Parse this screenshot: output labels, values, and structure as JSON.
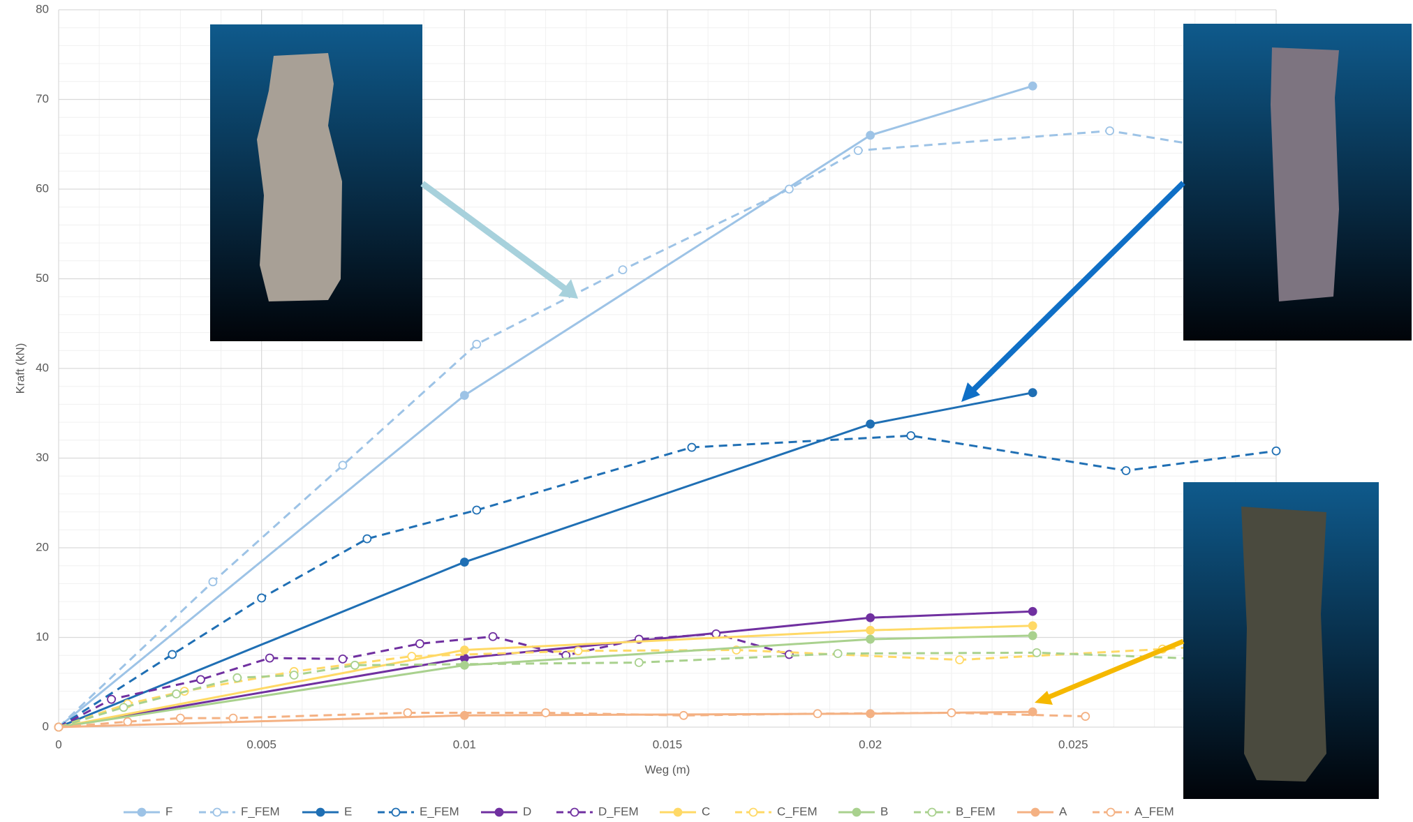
{
  "chart_data": {
    "type": "line",
    "x_label": "Weg (m)",
    "y_label": "Kraft (kN)",
    "xlim": [
      0,
      0.03
    ],
    "xticks": [
      0,
      0.005,
      0.01,
      0.015,
      0.02,
      0.025
    ],
    "ylim": [
      0,
      80
    ],
    "yticks": [
      0,
      10,
      20,
      30,
      40,
      50,
      60,
      70,
      80
    ],
    "grid": true,
    "legend": "bottom",
    "series": [
      {
        "name": "F",
        "color": "#9dc3e6",
        "dashed": false,
        "x": [
          0,
          0.01,
          0.02,
          0.024
        ],
        "values": [
          0,
          37,
          66,
          71.5
        ]
      },
      {
        "name": "F_FEM",
        "color": "#9dc3e6",
        "dashed": true,
        "x": [
          0,
          0.0038,
          0.007,
          0.0103,
          0.0139,
          0.018,
          0.0197,
          0.0259,
          0.03
        ],
        "values": [
          0,
          16.2,
          29.2,
          42.7,
          51,
          60,
          64.3,
          66.5,
          63.5
        ]
      },
      {
        "name": "E",
        "color": "#1f6fb4",
        "dashed": false,
        "x": [
          0,
          0.01,
          0.02,
          0.024
        ],
        "values": [
          0,
          18.4,
          33.8,
          37.3
        ]
      },
      {
        "name": "E_FEM",
        "color": "#1f6fb4",
        "dashed": true,
        "x": [
          0,
          0.0028,
          0.005,
          0.0076,
          0.0103,
          0.0156,
          0.021,
          0.0263,
          0.03
        ],
        "values": [
          0,
          8.1,
          14.4,
          21,
          24.2,
          31.2,
          32.5,
          28.6,
          30.8
        ]
      },
      {
        "name": "D",
        "color": "#7030a0",
        "dashed": false,
        "x": [
          0,
          0.01,
          0.02,
          0.024
        ],
        "values": [
          0,
          7.7,
          12.2,
          12.9
        ]
      },
      {
        "name": "D_FEM",
        "color": "#7030a0",
        "dashed": true,
        "x": [
          0,
          0.0013,
          0.0035,
          0.0052,
          0.007,
          0.0089,
          0.0107,
          0.0125,
          0.0143,
          0.0162,
          0.018
        ],
        "values": [
          0,
          3.1,
          5.3,
          7.7,
          7.6,
          9.3,
          10.1,
          8,
          9.8,
          10.4,
          8.1
        ]
      },
      {
        "name": "C",
        "color": "#ffd966",
        "dashed": false,
        "x": [
          0,
          0.01,
          0.02,
          0.024
        ],
        "values": [
          0,
          8.6,
          10.8,
          11.3
        ]
      },
      {
        "name": "C_FEM",
        "color": "#ffd966",
        "dashed": true,
        "x": [
          0,
          0.0017,
          0.0031,
          0.0058,
          0.0087,
          0.0128,
          0.0167,
          0.0222,
          0.0272,
          0.03
        ],
        "values": [
          0,
          2.6,
          4,
          6.2,
          7.9,
          8.5,
          8.6,
          7.5,
          8.7,
          9.5
        ]
      },
      {
        "name": "B",
        "color": "#a9d18e",
        "dashed": false,
        "x": [
          0,
          0.01,
          0.02,
          0.024
        ],
        "values": [
          0,
          6.9,
          9.8,
          10.2
        ]
      },
      {
        "name": "B_FEM",
        "color": "#a9d18e",
        "dashed": true,
        "x": [
          0,
          0.0016,
          0.0029,
          0.0044,
          0.0058,
          0.0073,
          0.0143,
          0.0192,
          0.0241,
          0.03
        ],
        "values": [
          0,
          2.2,
          3.7,
          5.5,
          5.8,
          6.9,
          7.2,
          8.2,
          8.3,
          7.3
        ]
      },
      {
        "name": "A",
        "color": "#f4b183",
        "dashed": false,
        "x": [
          0,
          0.01,
          0.02,
          0.024
        ],
        "values": [
          0,
          1.3,
          1.5,
          1.7
        ]
      },
      {
        "name": "A_FEM",
        "color": "#f4b183",
        "dashed": true,
        "x": [
          0,
          0.0017,
          0.003,
          0.0043,
          0.0086,
          0.012,
          0.0154,
          0.0187,
          0.022,
          0.0253
        ],
        "values": [
          0,
          0.6,
          1,
          1,
          1.6,
          1.6,
          1.3,
          1.5,
          1.6,
          1.2
        ]
      }
    ]
  }
}
